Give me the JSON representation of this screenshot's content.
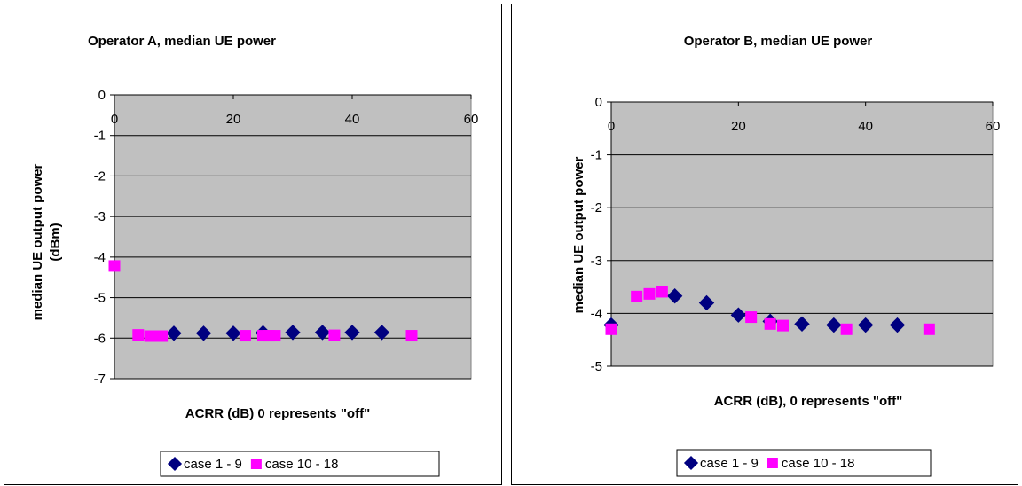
{
  "chart_data": [
    {
      "type": "scatter",
      "title": "Operator A, median UE power",
      "xlabel": "ACRR (dB) 0 represents \"off\"",
      "ylabel_lines": [
        "median UE output power",
        "(dBm)"
      ],
      "xlim": [
        0,
        60
      ],
      "ylim": [
        -7,
        0
      ],
      "xticks": [
        "0",
        "20",
        "40",
        "60"
      ],
      "yticks": [
        "0",
        "-1",
        "-2",
        "-3",
        "-4",
        "-5",
        "-6",
        "-7"
      ],
      "grid": "horizontal",
      "legend_position": "bottom",
      "series": [
        {
          "name": "case 1 - 9",
          "marker": "diamond",
          "color": "#000080",
          "points": [
            [
              10,
              -5.88
            ],
            [
              15,
              -5.88
            ],
            [
              20,
              -5.88
            ],
            [
              25,
              -5.87
            ],
            [
              30,
              -5.86
            ],
            [
              35,
              -5.86
            ],
            [
              40,
              -5.86
            ],
            [
              45,
              -5.86
            ]
          ]
        },
        {
          "name": "case 10 - 18",
          "marker": "square",
          "color": "#ff00ff",
          "points": [
            [
              0,
              -4.22
            ],
            [
              4,
              -5.92
            ],
            [
              6,
              -5.95
            ],
            [
              7,
              -5.95
            ],
            [
              8,
              -5.95
            ],
            [
              22,
              -5.94
            ],
            [
              25,
              -5.94
            ],
            [
              26,
              -5.94
            ],
            [
              27,
              -5.94
            ],
            [
              37,
              -5.93
            ],
            [
              50,
              -5.94
            ]
          ]
        }
      ]
    },
    {
      "type": "scatter",
      "title": "Operator B, median UE power",
      "xlabel": "ACRR (dB), 0 represents \"off\"",
      "ylabel_lines": [
        "median UE output power"
      ],
      "xlim": [
        0,
        60
      ],
      "ylim": [
        -5,
        0
      ],
      "xticks": [
        "0",
        "20",
        "40",
        "60"
      ],
      "yticks": [
        "0",
        "-1",
        "-2",
        "-3",
        "-4",
        "-5"
      ],
      "grid": "horizontal",
      "legend_position": "bottom",
      "series": [
        {
          "name": "case 1 - 9",
          "marker": "diamond",
          "color": "#000080",
          "points": [
            [
              0,
              -4.22
            ],
            [
              10,
              -3.67
            ],
            [
              15,
              -3.8
            ],
            [
              20,
              -4.03
            ],
            [
              25,
              -4.15
            ],
            [
              30,
              -4.2
            ],
            [
              35,
              -4.22
            ],
            [
              40,
              -4.22
            ],
            [
              45,
              -4.22
            ]
          ]
        },
        {
          "name": "case 10 - 18",
          "marker": "square",
          "color": "#ff00ff",
          "points": [
            [
              0,
              -4.3
            ],
            [
              4,
              -3.68
            ],
            [
              6,
              -3.63
            ],
            [
              8,
              -3.59
            ],
            [
              22,
              -4.07
            ],
            [
              25,
              -4.2
            ],
            [
              27,
              -4.23
            ],
            [
              37,
              -4.3
            ],
            [
              50,
              -4.3
            ]
          ]
        }
      ]
    }
  ]
}
